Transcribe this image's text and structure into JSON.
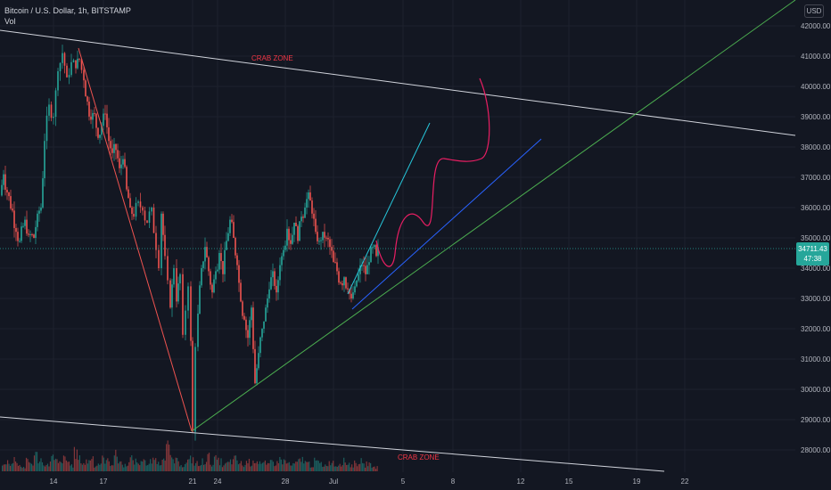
{
  "legend": {
    "symbol_line": "Bitcoin / U.S. Dollar, 1h, BITSTAMP",
    "volume_label": "Vol"
  },
  "currency": "USD",
  "price_badge": {
    "price": "34711.43",
    "countdown": "47:38"
  },
  "colors": {
    "background": "#131722",
    "grid": "#1e222d",
    "axis_text": "#b2b5be",
    "up": "#26a69a",
    "down": "#ef5350",
    "trendline_white": "#d1d4dc",
    "trendline_green": "#4caf50",
    "trendline_blue": "#2962ff",
    "trendline_teal": "#26c6da",
    "drawing_red": "#e91e63"
  },
  "annotations": {
    "upper_label": "CRAB ZONE",
    "lower_label": "CRAB ZONE"
  },
  "chart_data": {
    "type": "candlestick",
    "y_ticks": [
      28000,
      29000,
      30000,
      31000,
      32000,
      33000,
      34000,
      35000,
      36000,
      37000,
      38000,
      39000,
      40000,
      41000,
      42000
    ],
    "y_tick_labels": [
      "28000.00",
      "29000.00",
      "30000.00",
      "31000.00",
      "32000.00",
      "33000.00",
      "34000.00",
      "35000.00",
      "36000.00",
      "37000.00",
      "38000.00",
      "39000.00",
      "40000.00",
      "41000.00",
      "42000.00"
    ],
    "ylim": [
      27400,
      42500
    ],
    "x_ticks": [
      "14",
      "17",
      "21",
      "24",
      "28",
      "Jul",
      "5",
      "8",
      "12",
      "15",
      "19",
      "22"
    ],
    "last_price": 34711.43,
    "price_path": [
      [
        0,
        36400
      ],
      [
        4,
        37100
      ],
      [
        8,
        36500
      ],
      [
        14,
        35900
      ],
      [
        18,
        35200
      ],
      [
        22,
        34900
      ],
      [
        28,
        35600
      ],
      [
        32,
        35100
      ],
      [
        38,
        35000
      ],
      [
        42,
        35800
      ],
      [
        46,
        36000
      ],
      [
        50,
        38200
      ],
      [
        55,
        39400
      ],
      [
        60,
        39000
      ],
      [
        65,
        40500
      ],
      [
        70,
        41100
      ],
      [
        75,
        40300
      ],
      [
        80,
        40800
      ],
      [
        85,
        40600
      ],
      [
        89,
        40900
      ],
      [
        94,
        40200
      ],
      [
        98,
        39500
      ],
      [
        102,
        38900
      ],
      [
        106,
        39100
      ],
      [
        110,
        38300
      ],
      [
        114,
        38700
      ],
      [
        118,
        39100
      ],
      [
        122,
        38200
      ],
      [
        126,
        37800
      ],
      [
        130,
        37900
      ],
      [
        134,
        37300
      ],
      [
        138,
        37600
      ],
      [
        142,
        36600
      ],
      [
        146,
        36000
      ],
      [
        150,
        35700
      ],
      [
        155,
        36200
      ],
      [
        160,
        35900
      ],
      [
        165,
        35500
      ],
      [
        170,
        36000
      ],
      [
        175,
        34600
      ],
      [
        178,
        34000
      ],
      [
        181,
        35800
      ],
      [
        185,
        34400
      ],
      [
        188,
        33600
      ],
      [
        191,
        32700
      ],
      [
        195,
        34000
      ],
      [
        198,
        32900
      ],
      [
        202,
        33800
      ],
      [
        205,
        31800
      ],
      [
        208,
        32600
      ],
      [
        211,
        33400
      ],
      [
        214,
        31600
      ],
      [
        216,
        28600
      ],
      [
        219,
        31400
      ],
      [
        222,
        32500
      ],
      [
        226,
        34000
      ],
      [
        230,
        34700
      ],
      [
        234,
        33900
      ],
      [
        238,
        33200
      ],
      [
        242,
        33900
      ],
      [
        246,
        34500
      ],
      [
        250,
        33800
      ],
      [
        254,
        34900
      ],
      [
        258,
        35600
      ],
      [
        262,
        35000
      ],
      [
        266,
        34100
      ],
      [
        270,
        32900
      ],
      [
        274,
        32300
      ],
      [
        278,
        31700
      ],
      [
        282,
        32700
      ],
      [
        286,
        30200
      ],
      [
        290,
        31200
      ],
      [
        294,
        32000
      ],
      [
        298,
        32700
      ],
      [
        302,
        33300
      ],
      [
        306,
        33900
      ],
      [
        310,
        33200
      ],
      [
        314,
        34100
      ],
      [
        318,
        34600
      ],
      [
        322,
        35300
      ],
      [
        326,
        34800
      ],
      [
        330,
        35500
      ],
      [
        334,
        34900
      ],
      [
        338,
        35700
      ],
      [
        342,
        36000
      ],
      [
        346,
        36500
      ],
      [
        350,
        35800
      ],
      [
        354,
        35200
      ],
      [
        358,
        34900
      ],
      [
        362,
        35200
      ],
      [
        366,
        35000
      ],
      [
        370,
        34700
      ],
      [
        374,
        34200
      ],
      [
        378,
        33900
      ],
      [
        382,
        33500
      ],
      [
        386,
        33700
      ],
      [
        390,
        33300
      ],
      [
        394,
        33000
      ],
      [
        398,
        33400
      ],
      [
        402,
        33800
      ],
      [
        406,
        34100
      ],
      [
        410,
        33800
      ],
      [
        414,
        34200
      ],
      [
        418,
        34700
      ],
      [
        422,
        34400
      ],
      [
        424,
        34700
      ]
    ],
    "volume_bars": [
      3,
      5,
      4,
      6,
      3,
      2,
      5,
      4,
      8,
      6,
      4,
      3,
      7,
      5,
      4,
      6,
      5,
      3,
      9,
      6,
      4,
      5,
      7,
      3,
      4,
      6,
      5,
      4,
      8,
      5,
      3,
      4,
      6,
      5,
      4,
      7,
      3,
      5,
      6,
      4,
      9,
      12,
      6,
      5,
      4,
      3,
      5,
      6,
      4,
      3,
      5,
      7,
      4,
      6,
      5,
      3,
      4,
      5,
      6,
      4,
      3,
      5,
      4,
      6,
      5,
      4,
      3,
      5,
      4,
      6,
      5,
      4,
      3,
      4,
      5,
      6,
      4,
      3,
      5,
      4,
      3,
      4,
      5,
      3,
      4,
      5,
      4,
      3,
      4,
      5,
      3,
      4,
      3,
      2
    ]
  }
}
